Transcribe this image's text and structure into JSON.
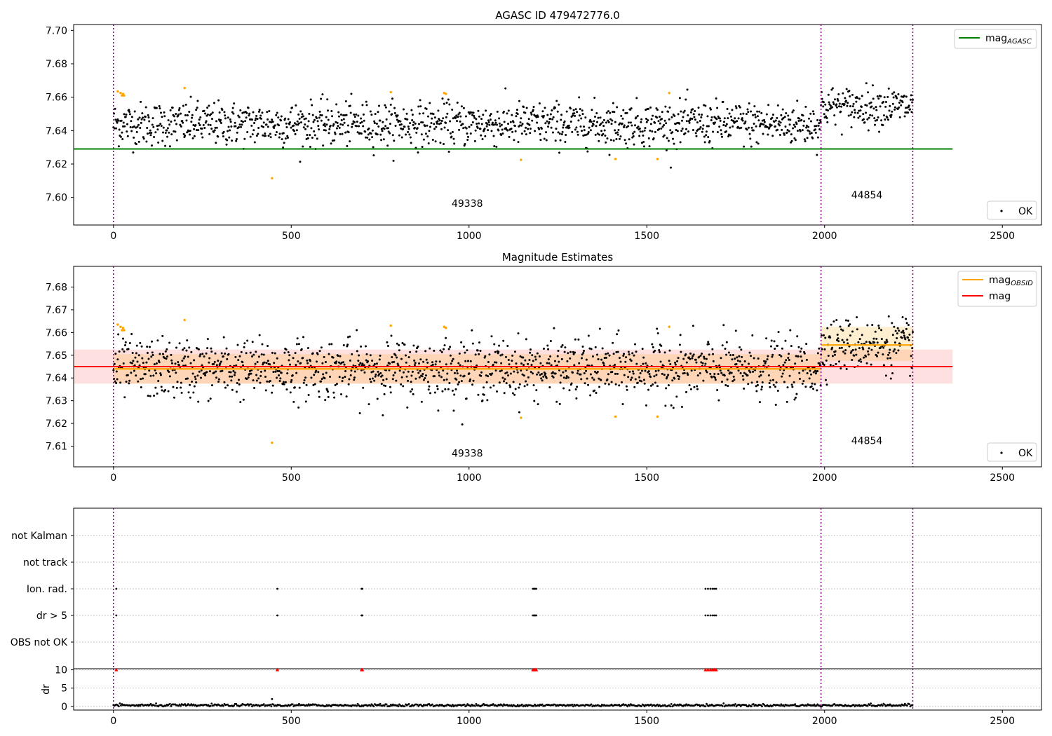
{
  "chart_data": [
    {
      "id": "agasc",
      "type": "scatter",
      "title": "AGASC ID 479472776.0",
      "xlim": [
        -112,
        2610
      ],
      "ylim": [
        7.5835,
        7.7035
      ],
      "xticks": [
        0,
        500,
        1000,
        1500,
        2000,
        2500
      ],
      "yticks": [
        7.6,
        7.62,
        7.64,
        7.66,
        7.68,
        7.7
      ],
      "ytick_labels": [
        "7.60",
        "7.62",
        "7.64",
        "7.66",
        "7.68",
        "7.70"
      ],
      "obs_boundaries": [
        0,
        1990,
        2248
      ],
      "obsid_labels": [
        {
          "text": "49338",
          "x": 995,
          "y": 7.5945
        },
        {
          "text": "44854",
          "x": 2119,
          "y": 7.5995
        }
      ],
      "mag_agasc": {
        "value": 7.629,
        "x_range": [
          -112,
          2360
        ]
      },
      "legend_upper": [
        {
          "label": "mag",
          "sub": "AGASC",
          "color": "#008000"
        }
      ],
      "legend_lower": [
        {
          "label": "OK",
          "color": "#000000"
        }
      ],
      "series_ok": {
        "name": "OK",
        "color": "#000000",
        "segments": [
          {
            "x_range": [
              0,
              1990
            ],
            "center": 7.644,
            "spread": 0.0065,
            "step": 1.5
          },
          {
            "x_range": [
              1990,
              2248
            ],
            "center": 7.6545,
            "spread": 0.0058,
            "step": 1.5
          }
        ]
      },
      "series_outliers": {
        "color": "#ffa500",
        "x": [
          12,
          20,
          24,
          27,
          30,
          200,
          446,
          780,
          930,
          935,
          1146,
          1412,
          1530,
          1563
        ],
        "y": [
          7.6635,
          7.6625,
          7.661,
          7.662,
          7.661,
          7.6655,
          7.6115,
          7.663,
          7.6625,
          7.662,
          7.6225,
          7.623,
          7.623,
          7.6625
        ]
      }
    },
    {
      "id": "estimates",
      "type": "scatter",
      "title": "Magnitude Estimates",
      "xlim": [
        -112,
        2610
      ],
      "ylim": [
        7.6009,
        7.6891
      ],
      "xticks": [
        0,
        500,
        1000,
        1500,
        2000,
        2500
      ],
      "yticks": [
        7.61,
        7.62,
        7.63,
        7.64,
        7.65,
        7.66,
        7.67,
        7.68
      ],
      "ytick_labels": [
        "7.61",
        "7.62",
        "7.63",
        "7.64",
        "7.65",
        "7.66",
        "7.67",
        "7.68"
      ],
      "obs_boundaries": [
        0,
        1990,
        2248
      ],
      "obsid_labels": [
        {
          "text": "49338",
          "x": 995,
          "y": 7.6054
        },
        {
          "text": "44854",
          "x": 2119,
          "y": 7.6109
        }
      ],
      "mag": {
        "value": 7.645,
        "band": [
          7.6375,
          7.6525
        ],
        "x_range": [
          -112,
          2360
        ],
        "color": "#ff0000"
      },
      "mag_obsid": [
        {
          "value": 7.644,
          "band": [
            7.6375,
            7.6505
          ],
          "x_range": [
            0,
            1990
          ]
        },
        {
          "value": 7.6545,
          "band": [
            7.6475,
            7.6625
          ],
          "x_range": [
            1990,
            2248
          ]
        }
      ],
      "legend_upper": [
        {
          "label": "mag",
          "sub": "OBSID",
          "color": "#ffa500"
        },
        {
          "label": "mag",
          "sub": "",
          "color": "#ff0000"
        }
      ],
      "legend_lower": [
        {
          "label": "OK",
          "color": "#000000"
        }
      ],
      "series_ok": {
        "name": "OK",
        "color": "#000000",
        "segments": [
          {
            "x_range": [
              0,
              1990
            ],
            "center": 7.644,
            "spread": 0.0065,
            "step": 1.5
          },
          {
            "x_range": [
              1990,
              2248
            ],
            "center": 7.6545,
            "spread": 0.0058,
            "step": 1.5
          }
        ]
      },
      "series_outliers": {
        "color": "#ffa500",
        "x": [
          12,
          20,
          24,
          27,
          30,
          200,
          446,
          780,
          930,
          935,
          1146,
          1412,
          1530,
          1563
        ],
        "y": [
          7.6635,
          7.6625,
          7.661,
          7.662,
          7.661,
          7.6655,
          7.6115,
          7.663,
          7.6625,
          7.662,
          7.6225,
          7.623,
          7.623,
          7.6625
        ]
      }
    },
    {
      "id": "flags",
      "type": "scatter",
      "xlim": [
        -112,
        2610
      ],
      "categories": [
        "not Kalman",
        "not track",
        "Ion. rad.",
        "dr > 5",
        "OBS not OK"
      ],
      "obs_boundaries": [
        0,
        1990,
        2248
      ],
      "points": {
        "Ion. rad.": [
          8,
          461,
          698,
          700,
          1180,
          1183,
          1186,
          1189,
          1665,
          1672,
          1679,
          1685,
          1690,
          1695
        ],
        "dr > 5": [
          8,
          461,
          698,
          700,
          1180,
          1183,
          1186,
          1189,
          1665,
          1672,
          1679,
          1685,
          1690,
          1695
        ]
      }
    },
    {
      "id": "dr",
      "type": "scatter",
      "ylabel": "dr",
      "xlim": [
        -112,
        2610
      ],
      "ylim": [
        -1,
        10.3
      ],
      "xticks": [
        0,
        500,
        1000,
        1500,
        2000,
        2500
      ],
      "yticks": [
        0,
        5,
        10
      ],
      "ytick_labels": [
        "0",
        "5",
        "10"
      ],
      "obs_boundaries": [
        0,
        1990,
        2248
      ],
      "baseline": {
        "x_range": [
          0,
          2248
        ],
        "center": 0.3,
        "spread": 0.18,
        "step": 3,
        "color": "#000000"
      },
      "spike": {
        "x": 446,
        "y": 2.0
      },
      "clipped_markers": {
        "color": "#ff0000",
        "y": 10,
        "x": [
          8,
          461,
          698,
          700,
          1180,
          1183,
          1186,
          1189,
          1665,
          1672,
          1679,
          1685,
          1690,
          1695
        ]
      }
    }
  ]
}
